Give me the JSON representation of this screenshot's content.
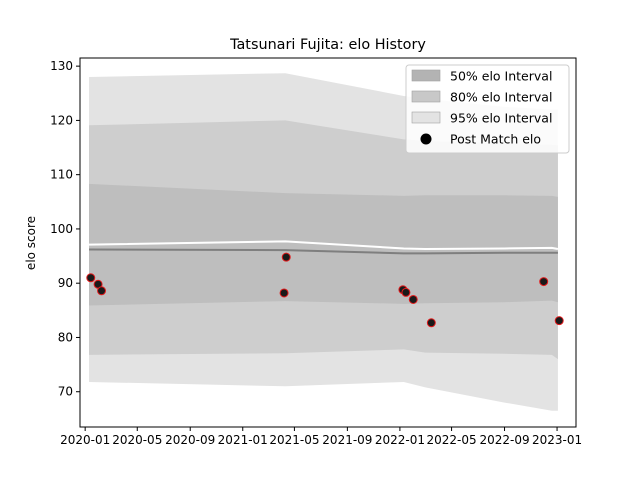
{
  "chart_data": {
    "type": "line",
    "title": "Tatsunari Fujita: elo History",
    "xlabel": "",
    "ylabel": "elo score",
    "xlim": [
      "2019-12-20",
      "2023-02-14"
    ],
    "ylim": [
      63.5,
      131.5
    ],
    "x_ticks": [
      "2020-01",
      "2020-05",
      "2020-09",
      "2021-01",
      "2021-05",
      "2021-09",
      "2022-01",
      "2022-05",
      "2022-09",
      "2023-01"
    ],
    "y_ticks": [
      70,
      80,
      90,
      100,
      110,
      120,
      130
    ],
    "legend_position": "top-right",
    "grid": false,
    "dates": [
      "2020-01-10",
      "2021-04-10",
      "2022-01-10",
      "2022-03-01",
      "2022-09-01",
      "2022-12-20",
      "2023-01-03"
    ],
    "bands": [
      {
        "name": "95% elo Interval",
        "color": "#e3e3e3",
        "lower": [
          71.8,
          71.0,
          71.8,
          70.8,
          68.0,
          66.5,
          66.5
        ],
        "upper": [
          128.0,
          128.7,
          124.5,
          124.0,
          122.5,
          122.0,
          122.0
        ]
      },
      {
        "name": "80% elo Interval",
        "color": "#cecece",
        "lower": [
          76.8,
          77.1,
          77.8,
          77.2,
          77.0,
          76.8,
          76.0
        ],
        "upper": [
          119.1,
          120.0,
          116.5,
          116.2,
          115.8,
          115.5,
          115.4
        ]
      },
      {
        "name": "50% elo Interval",
        "color": "#bebebe",
        "lower": [
          85.9,
          86.7,
          86.2,
          86.3,
          86.5,
          86.8,
          86.5
        ],
        "upper": [
          108.3,
          106.6,
          106.1,
          106.2,
          106.2,
          106.1,
          105.9
        ]
      }
    ],
    "mean_line": {
      "color": "#7f7f7f",
      "values": [
        96.2,
        96.1,
        95.5,
        95.5,
        95.6,
        95.6,
        95.6
      ]
    },
    "upper_line": {
      "color": "#ffffff",
      "values": [
        97.1,
        97.7,
        96.4,
        96.3,
        96.4,
        96.5,
        96.3
      ]
    },
    "points": {
      "name": "Post Match elo",
      "face_color": "#1a1a1a",
      "edge_color": "#e41a1c",
      "x": [
        "2020-01-14",
        "2020-01-31",
        "2020-02-08",
        "2021-04-07",
        "2021-04-12",
        "2022-01-08",
        "2022-01-15",
        "2022-02-01",
        "2022-03-15",
        "2022-12-01",
        "2023-01-06"
      ],
      "y": [
        91.0,
        89.8,
        88.6,
        88.2,
        94.8,
        88.8,
        88.3,
        87.0,
        82.7,
        90.3,
        83.1
      ]
    }
  }
}
